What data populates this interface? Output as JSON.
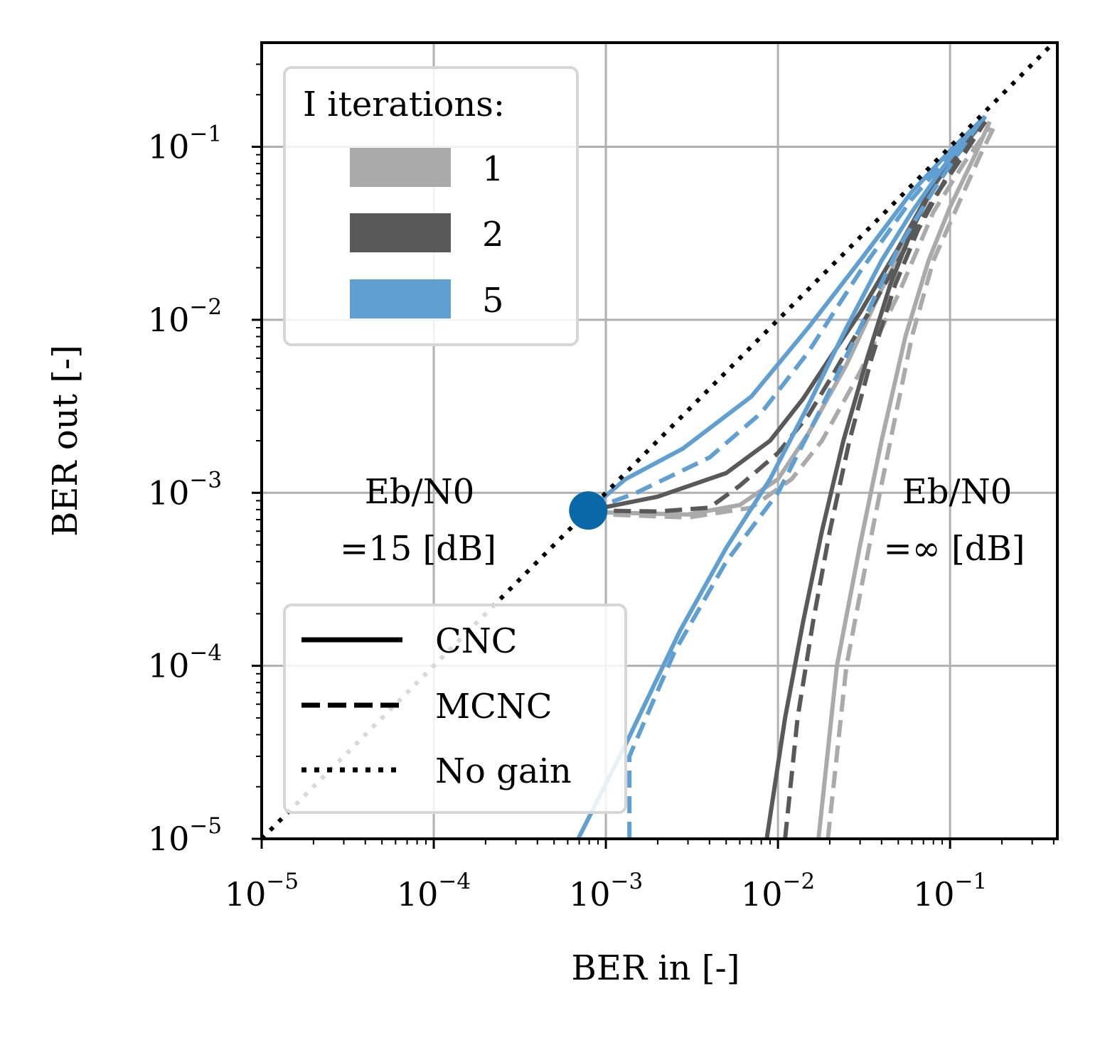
{
  "chart_data": {
    "type": "line",
    "title": "",
    "xlabel": "BER in [-]",
    "ylabel": "BER out [-]",
    "xscale": "log",
    "yscale": "log",
    "xlim": [
      1e-05,
      0.42
    ],
    "ylim": [
      1e-05,
      0.4
    ],
    "grid": true,
    "x_ticks": [
      {
        "value": 1e-05,
        "base": "10",
        "exp": "−5"
      },
      {
        "value": 0.0001,
        "base": "10",
        "exp": "−4"
      },
      {
        "value": 0.001,
        "base": "10",
        "exp": "−3"
      },
      {
        "value": 0.01,
        "base": "10",
        "exp": "−2"
      },
      {
        "value": 0.1,
        "base": "10",
        "exp": "−1"
      }
    ],
    "y_ticks": [
      {
        "value": 1e-05,
        "base": "10",
        "exp": "−5"
      },
      {
        "value": 0.0001,
        "base": "10",
        "exp": "−4"
      },
      {
        "value": 0.001,
        "base": "10",
        "exp": "−3"
      },
      {
        "value": 0.01,
        "base": "10",
        "exp": "−2"
      },
      {
        "value": 0.1,
        "base": "10",
        "exp": "−1"
      }
    ],
    "colors": {
      "1": "#aaaaaa",
      "2": "#595959",
      "5": "#5f9fd2",
      "marker": "#0868a8",
      "no_gain": "#000000"
    },
    "legend_iterations": {
      "title": "I iterations:",
      "placement": "top-left",
      "entries": [
        {
          "label": "1",
          "color": "#aaaaaa"
        },
        {
          "label": "2",
          "color": "#595959"
        },
        {
          "label": "5",
          "color": "#5f9fd2"
        }
      ]
    },
    "legend_styles": {
      "placement": "bottom-left",
      "entries": [
        {
          "label": "CNC",
          "style": "solid"
        },
        {
          "label": "MCNC",
          "style": "dashed"
        },
        {
          "label": "No gain",
          "style": "dotted"
        }
      ]
    },
    "annotations": [
      {
        "line1": "Eb/N0",
        "line2": "=15 [dB]"
      },
      {
        "line1": "Eb/N0",
        "line2": "=∞ [dB]"
      }
    ],
    "marker_point": {
      "x": 0.00079,
      "y": 0.00079
    },
    "series": [
      {
        "iterations": "1",
        "style": "solid",
        "color": "#aaaaaa",
        "x": [
          0.00079,
          0.001,
          0.003,
          0.006,
          0.01,
          0.015,
          0.025,
          0.04,
          0.07,
          0.1,
          0.16
        ],
        "y": [
          0.00079,
          0.00077,
          0.00075,
          0.00085,
          0.0012,
          0.0022,
          0.0055,
          0.015,
          0.045,
          0.085,
          0.14
        ]
      },
      {
        "iterations": "1",
        "style": "dashed",
        "color": "#aaaaaa",
        "x": [
          0.00079,
          0.001,
          0.003,
          0.007,
          0.012,
          0.018,
          0.03,
          0.05,
          0.08,
          0.12,
          0.17
        ],
        "y": [
          0.00079,
          0.00075,
          0.00072,
          0.00082,
          0.0012,
          0.002,
          0.005,
          0.014,
          0.042,
          0.08,
          0.13
        ]
      },
      {
        "iterations": "1",
        "style": "solid",
        "color": "#aaaaaa",
        "x": [
          0.0172,
          0.022,
          0.03,
          0.04,
          0.055,
          0.075,
          0.1,
          0.14,
          0.17
        ],
        "y": [
          1e-05,
          0.0001,
          0.0005,
          0.002,
          0.008,
          0.022,
          0.045,
          0.09,
          0.14
        ]
      },
      {
        "iterations": "1",
        "style": "dashed",
        "color": "#aaaaaa",
        "x": [
          0.0195,
          0.025,
          0.034,
          0.045,
          0.06,
          0.08,
          0.11,
          0.15,
          0.18
        ],
        "y": [
          1e-05,
          0.0001,
          0.0005,
          0.002,
          0.008,
          0.022,
          0.045,
          0.09,
          0.13
        ]
      },
      {
        "iterations": "2",
        "style": "solid",
        "color": "#595959",
        "x": [
          0.00079,
          0.002,
          0.005,
          0.009,
          0.014,
          0.02,
          0.03,
          0.05,
          0.08,
          0.12,
          0.16
        ],
        "y": [
          0.00079,
          0.00095,
          0.0013,
          0.002,
          0.0035,
          0.006,
          0.011,
          0.026,
          0.06,
          0.1,
          0.15
        ]
      },
      {
        "iterations": "2",
        "style": "dashed",
        "color": "#595959",
        "x": [
          0.00079,
          0.002,
          0.004,
          0.006,
          0.01,
          0.015,
          0.02,
          0.03,
          0.05,
          0.08,
          0.12,
          0.16
        ],
        "y": [
          0.00079,
          0.00078,
          0.00082,
          0.0011,
          0.0017,
          0.0028,
          0.0045,
          0.009,
          0.022,
          0.05,
          0.09,
          0.14
        ]
      },
      {
        "iterations": "2",
        "style": "solid",
        "color": "#595959",
        "x": [
          0.0086,
          0.011,
          0.014,
          0.018,
          0.024,
          0.033,
          0.045,
          0.06,
          0.08,
          0.11,
          0.16
        ],
        "y": [
          1e-05,
          5e-05,
          0.00018,
          0.0006,
          0.002,
          0.006,
          0.016,
          0.033,
          0.06,
          0.1,
          0.15
        ]
      },
      {
        "iterations": "2",
        "style": "dashed",
        "color": "#595959",
        "x": [
          0.011,
          0.013,
          0.016,
          0.02,
          0.026,
          0.035,
          0.048,
          0.065,
          0.09,
          0.12,
          0.16
        ],
        "y": [
          1e-05,
          5e-05,
          0.00018,
          0.0006,
          0.002,
          0.006,
          0.016,
          0.033,
          0.06,
          0.1,
          0.14
        ]
      },
      {
        "iterations": "5",
        "style": "solid",
        "color": "#5f9fd2",
        "x": [
          0.00079,
          0.0013,
          0.0028,
          0.007,
          0.015,
          0.03,
          0.06,
          0.1,
          0.16
        ],
        "y": [
          0.00079,
          0.0012,
          0.0018,
          0.0036,
          0.009,
          0.022,
          0.055,
          0.095,
          0.15
        ]
      },
      {
        "iterations": "5",
        "style": "dashed",
        "color": "#5f9fd2",
        "x": [
          0.00079,
          0.0015,
          0.004,
          0.008,
          0.015,
          0.03,
          0.06,
          0.1,
          0.15
        ],
        "y": [
          0.00079,
          0.001,
          0.0016,
          0.0029,
          0.0065,
          0.019,
          0.05,
          0.09,
          0.14
        ]
      },
      {
        "iterations": "5",
        "style": "solid",
        "color": "#5f9fd2",
        "x": [
          0.00069,
          0.0013,
          0.0027,
          0.005,
          0.009,
          0.015,
          0.025,
          0.04,
          0.06,
          0.09,
          0.13,
          0.16
        ],
        "y": [
          1e-05,
          3.5e-05,
          0.00016,
          0.00048,
          0.0012,
          0.0032,
          0.009,
          0.022,
          0.042,
          0.075,
          0.12,
          0.15
        ]
      },
      {
        "iterations": "5",
        "style": "dashed",
        "color": "#5f9fd2",
        "x": [
          0.00137,
          0.00137,
          0.0025,
          0.005,
          0.01,
          0.017,
          0.03,
          0.05,
          0.08,
          0.11,
          0.15
        ],
        "y": [
          1e-05,
          3e-05,
          0.00012,
          0.0004,
          0.001,
          0.0028,
          0.009,
          0.026,
          0.056,
          0.09,
          0.14
        ]
      }
    ]
  }
}
